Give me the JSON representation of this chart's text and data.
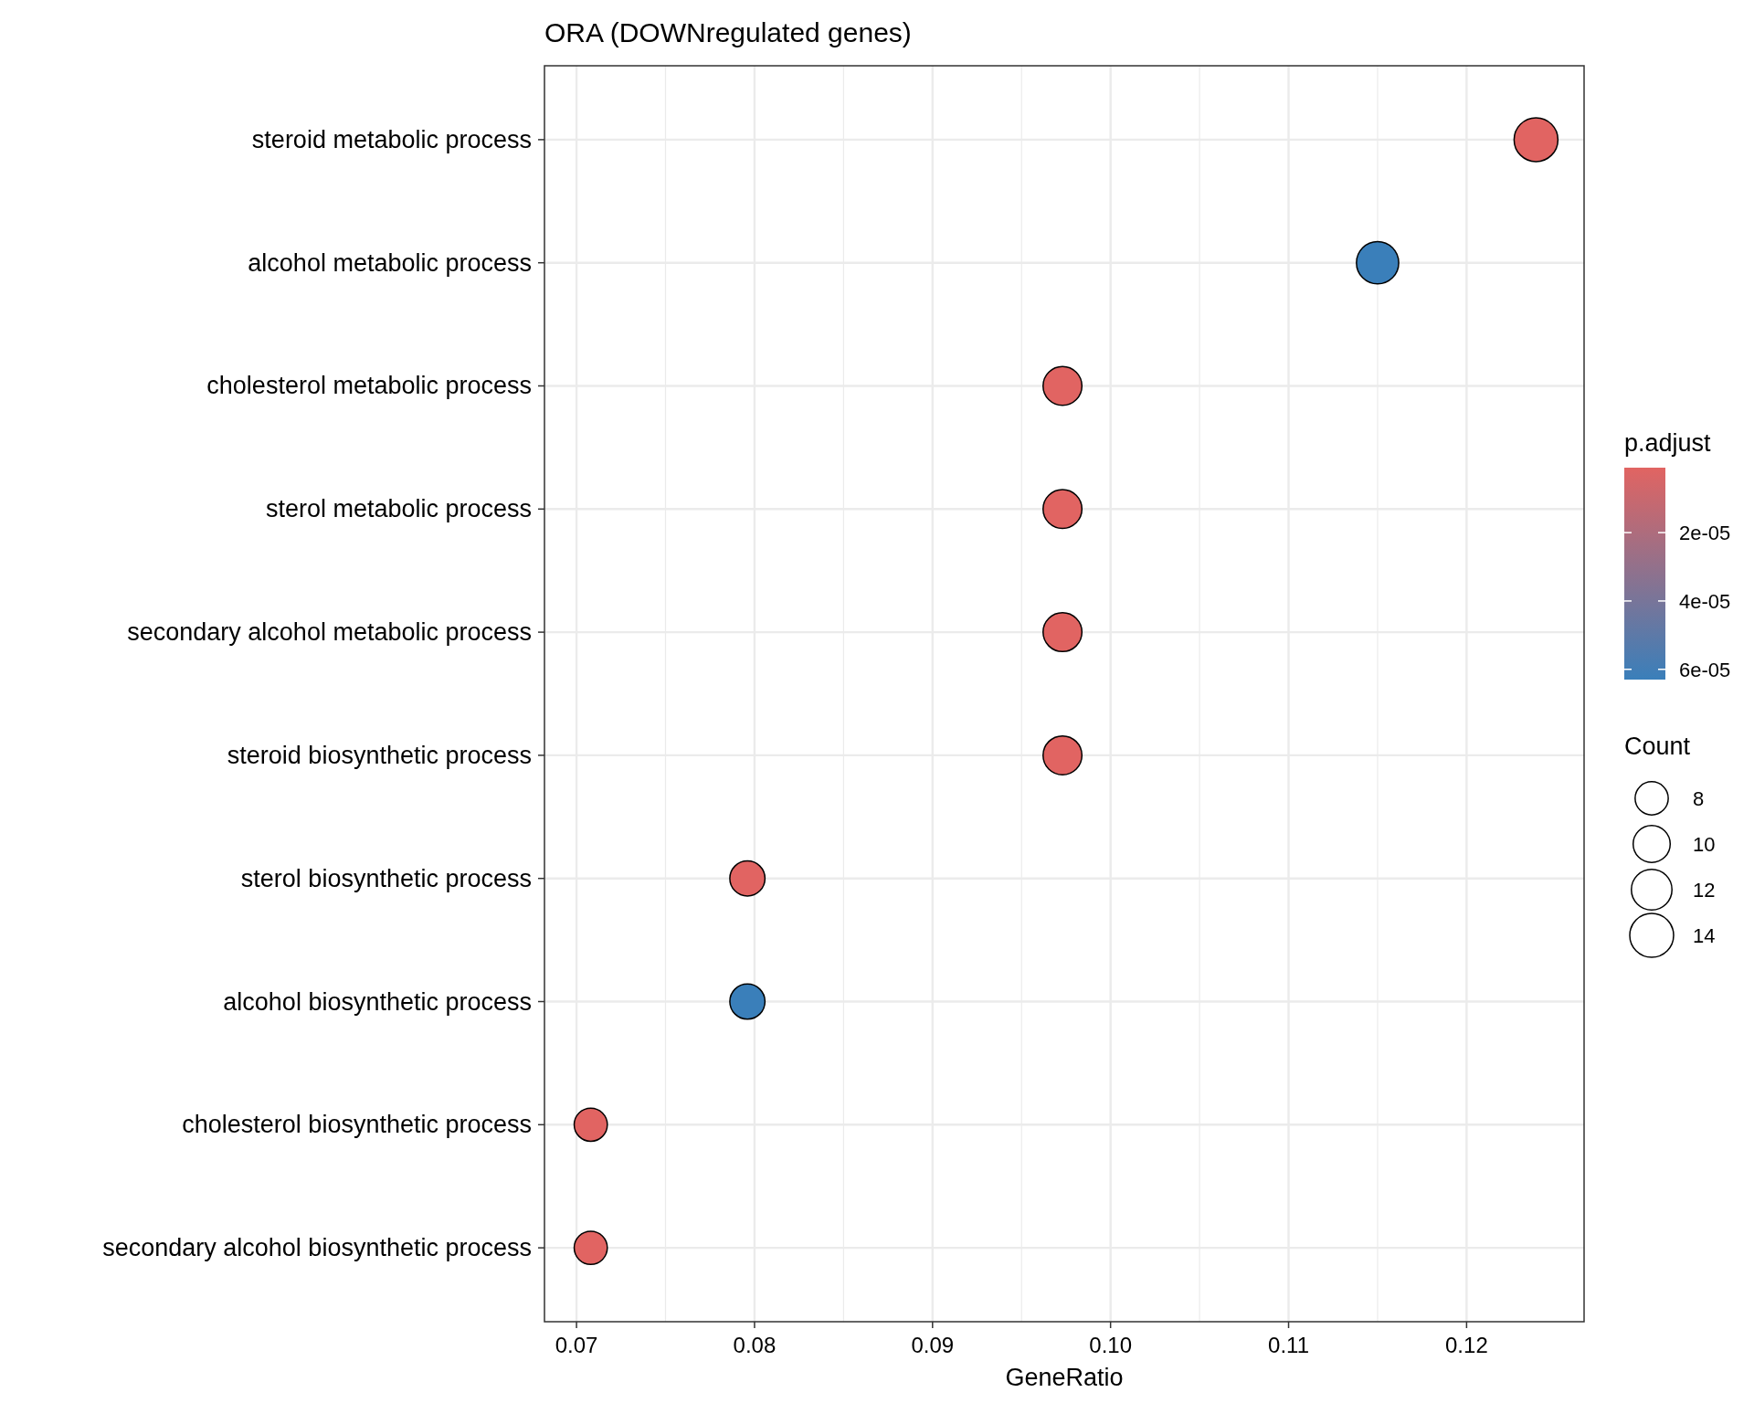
{
  "chart_data": {
    "type": "bubble",
    "title": "ORA (DOWNregulated genes)",
    "xlabel": "GeneRatio",
    "clabel": "p.adjust",
    "legend_title": "Count",
    "categories": [
      "steroid metabolic process",
      "alcohol metabolic process",
      "cholesterol metabolic process",
      "sterol metabolic process",
      "secondary alcohol metabolic process",
      "steroid biosynthetic process",
      "sterol biosynthetic process",
      "alcohol biosynthetic process",
      "cholesterol biosynthetic process",
      "secondary alcohol biosynthetic process"
    ],
    "values": [
      0.1239,
      0.115,
      0.0973,
      0.0973,
      0.0973,
      0.0973,
      0.0796,
      0.0796,
      0.0708,
      0.0708
    ],
    "sizes": [
      14,
      13,
      11,
      11,
      11,
      11,
      9,
      9,
      8,
      8
    ],
    "cvalues": [
      1e-06,
      6.3e-05,
      1e-06,
      1e-06,
      1e-06,
      1e-06,
      1e-06,
      6.3e-05,
      1e-06,
      1e-06
    ],
    "size_legend": [
      {
        "value": 8,
        "label": "8"
      },
      {
        "value": 10,
        "label": "10"
      },
      {
        "value": 12,
        "label": "12"
      },
      {
        "value": 14,
        "label": "14"
      }
    ],
    "orientation": "horizontal",
    "clim": [
      1e-06,
      6.3e-05
    ],
    "cticks": [
      {
        "value": 2e-05,
        "label": "2e-05"
      },
      {
        "value": 4e-05,
        "label": "4e-05"
      },
      {
        "value": 6e-05,
        "label": "6e-05"
      }
    ],
    "xlim": [
      0.0682,
      0.1266
    ],
    "xticks": [
      {
        "value": 0.07,
        "label": "0.07"
      },
      {
        "value": 0.08,
        "label": "0.08"
      },
      {
        "value": 0.09,
        "label": "0.09"
      },
      {
        "value": 0.1,
        "label": "0.10"
      },
      {
        "value": 0.11,
        "label": "0.11"
      },
      {
        "value": 0.12,
        "label": "0.12"
      }
    ],
    "grid": true
  }
}
